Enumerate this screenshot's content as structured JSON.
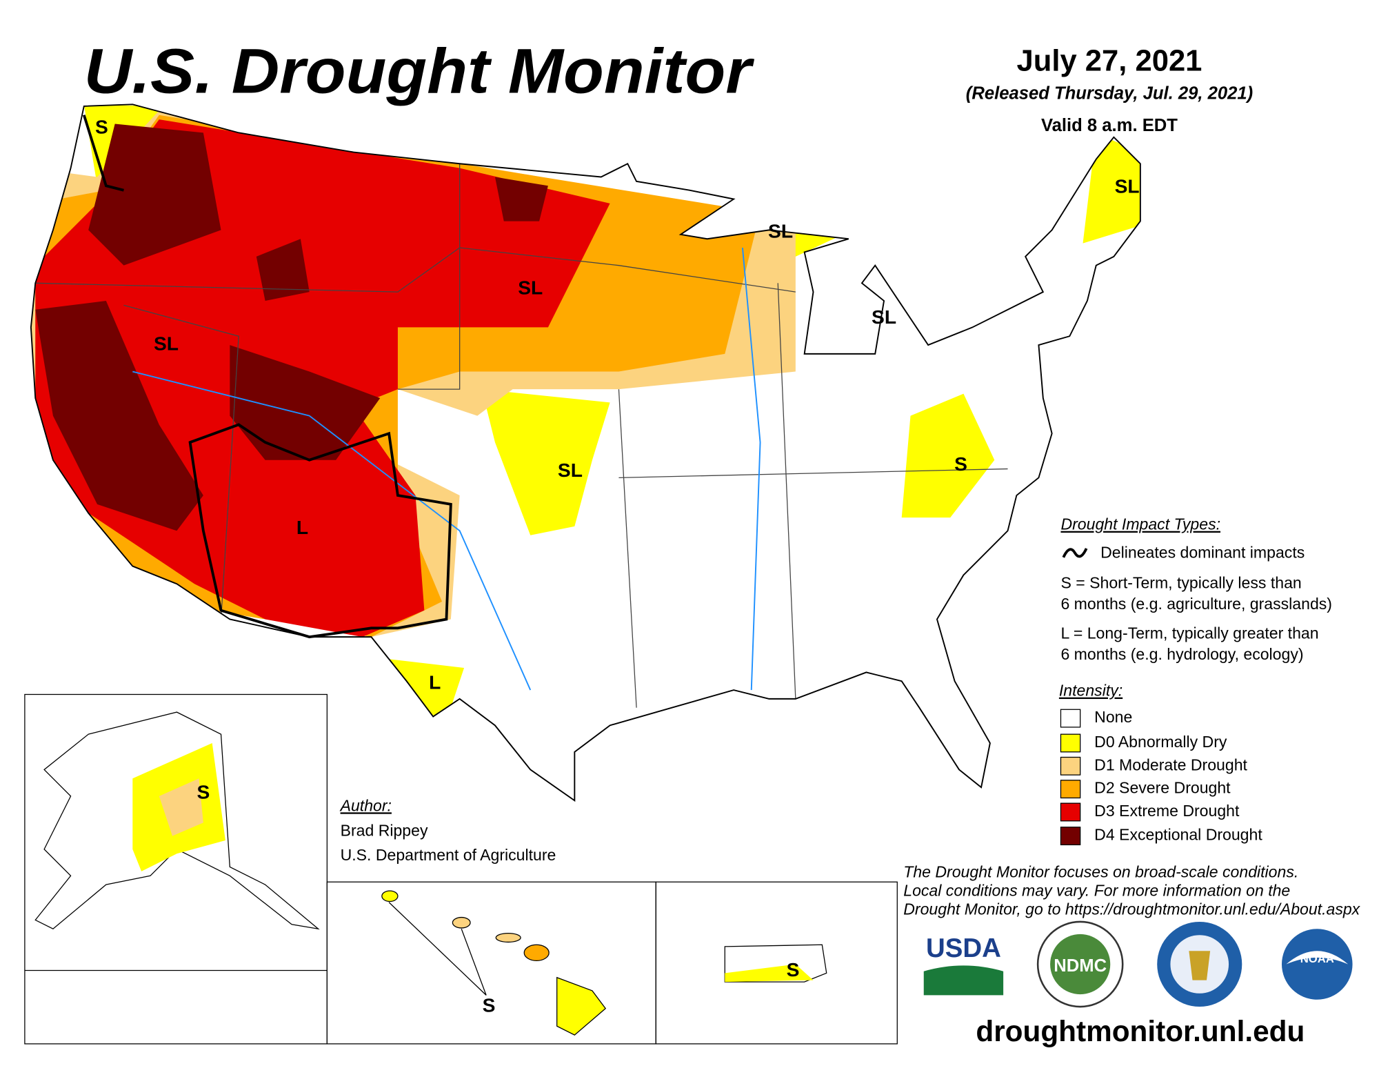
{
  "header": {
    "title": "U.S. Drought Monitor",
    "date": "July 27, 2021",
    "released": "(Released Thursday, Jul. 29, 2021)",
    "valid": "Valid 8 a.m. EDT"
  },
  "map_labels": [
    "S",
    "SL",
    "SL",
    "SL",
    "SL",
    "SL",
    "SL",
    "L",
    "S",
    "L",
    "S",
    "S",
    "S"
  ],
  "impact_legend": {
    "title": "Drought Impact Types:",
    "delineates": "Delineates dominant impacts",
    "short_term": [
      "S = Short-Term, typically less than",
      "6 months (e.g. agriculture, grasslands)"
    ],
    "long_term": [
      "L = Long-Term, typically greater than",
      "6 months (e.g. hydrology, ecology)"
    ]
  },
  "intensity_legend": {
    "title": "Intensity:",
    "items": [
      {
        "label": "None",
        "color": "#ffffff"
      },
      {
        "label": "D0 Abnormally Dry",
        "color": "#ffff00"
      },
      {
        "label": "D1 Moderate Drought",
        "color": "#fcd37f"
      },
      {
        "label": "D2 Severe Drought",
        "color": "#ffaa00"
      },
      {
        "label": "D3 Extreme Drought",
        "color": "#e60000"
      },
      {
        "label": "D4 Exceptional Drought",
        "color": "#730000"
      }
    ]
  },
  "author": {
    "heading": "Author:",
    "name": "Brad Rippey",
    "org": "U.S. Department of Agriculture"
  },
  "disclaimer": [
    "The Drought Monitor focuses on broad-scale conditions.",
    "Local conditions may vary. For more information on the",
    "Drought Monitor, go to https://droughtmonitor.unl.edu/About.aspx"
  ],
  "logos": [
    "USDA",
    "NDMC",
    "NOAA"
  ],
  "url": "droughtmonitor.unl.edu"
}
